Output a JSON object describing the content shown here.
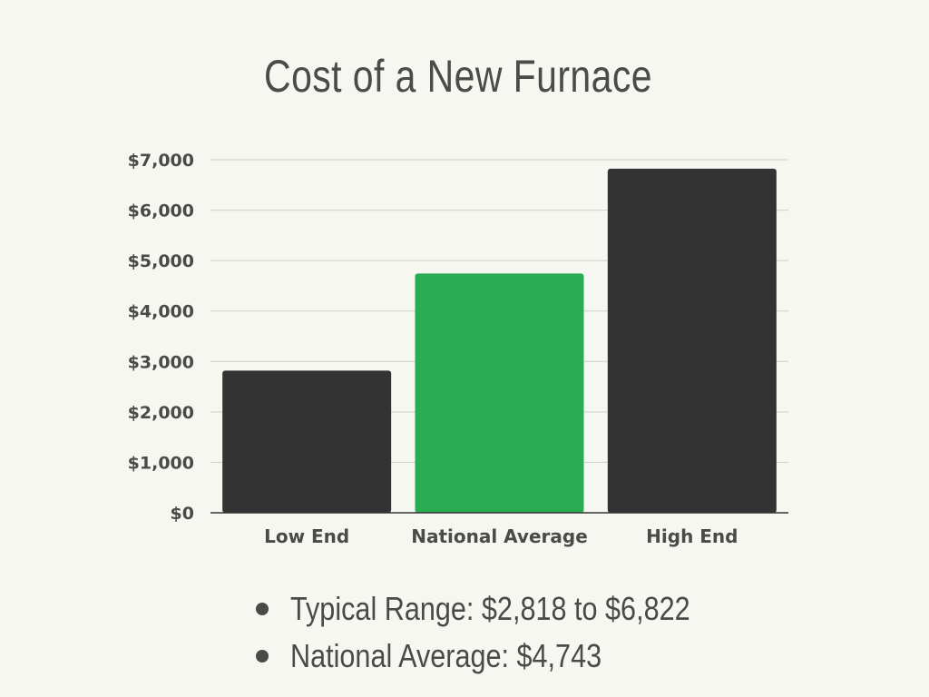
{
  "title": "Cost of a New Furnace",
  "colors": {
    "background": "#f7f7f2",
    "bar_dark": "#333333",
    "bar_highlight": "#2aad52",
    "grid": "#cfcfc9",
    "text": "#4a4a48"
  },
  "chart_data": {
    "type": "bar",
    "categories": [
      "Low End",
      "National Average",
      "High End"
    ],
    "values": [
      2818,
      4743,
      6822
    ],
    "bar_colors": [
      "#333333",
      "#2aad52",
      "#333333"
    ],
    "ylim": [
      0,
      7000
    ],
    "yticks": [
      0,
      1000,
      2000,
      3000,
      4000,
      5000,
      6000,
      7000
    ],
    "ytick_labels": [
      "$0",
      "$1,000",
      "$2,000",
      "$3,000",
      "$4,000",
      "$5,000",
      "$6,000",
      "$7,000"
    ],
    "grid": true,
    "legend": "none"
  },
  "bullets": [
    "Typical Range: $2,818 to $6,822",
    "National Average: $4,743"
  ]
}
